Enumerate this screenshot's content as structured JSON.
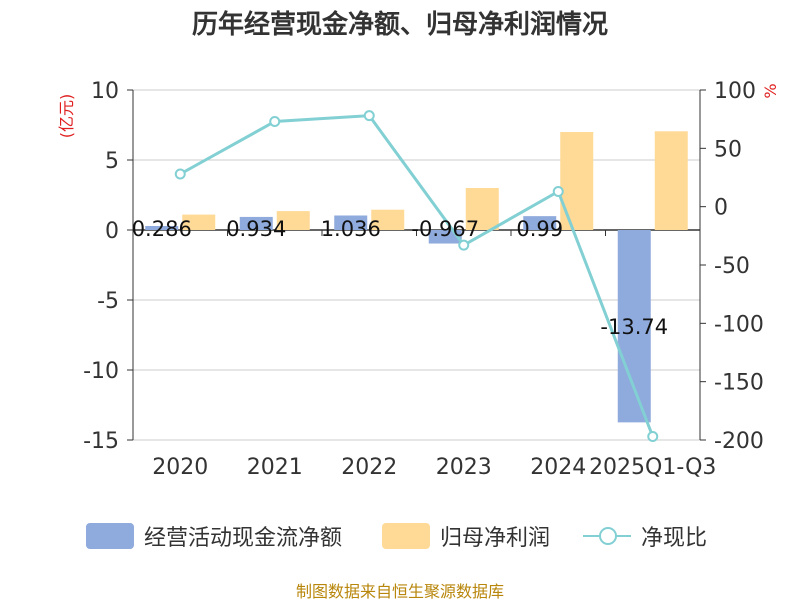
{
  "title": "历年经营现金净额、归母净利润情况",
  "source": "制图数据来自恒生聚源数据库",
  "chart_data": {
    "type": "bar+line",
    "categories": [
      "2020",
      "2021",
      "2022",
      "2023",
      "2024",
      "2025Q1-Q3"
    ],
    "left_axis": {
      "unit": "(亿元)",
      "ylim": [
        -15,
        10
      ],
      "ticks": [
        10,
        5,
        0,
        -5,
        -10,
        -15
      ]
    },
    "right_axis": {
      "unit": "%",
      "ylim": [
        -200,
        100
      ],
      "ticks": [
        100,
        50,
        0,
        -50,
        -100,
        -150,
        -200
      ]
    },
    "series": [
      {
        "name": "经营活动现金流净额",
        "type": "bar",
        "axis": "left",
        "color": "#8faadc",
        "values": [
          0.286,
          0.934,
          1.036,
          -0.967,
          0.99,
          -13.74
        ],
        "labels": [
          "0.286",
          "0.934",
          "1.036",
          "-0.967",
          "0.99",
          "-13.74"
        ]
      },
      {
        "name": "归母净利润",
        "type": "bar",
        "axis": "left",
        "color": "#ffd996",
        "values": [
          1.1,
          1.35,
          1.45,
          3.0,
          7.0,
          7.05
        ]
      },
      {
        "name": "净现比",
        "type": "line",
        "axis": "right",
        "color": "#82d0d3",
        "values": [
          28,
          73,
          78,
          -33,
          13,
          -197
        ]
      }
    ]
  },
  "legend": [
    {
      "name": "经营活动现金流净额",
      "color": "#8faadc",
      "kind": "bar"
    },
    {
      "name": "归母净利润",
      "color": "#ffd996",
      "kind": "bar"
    },
    {
      "name": "净现比",
      "color": "#82d0d3",
      "kind": "line"
    }
  ]
}
